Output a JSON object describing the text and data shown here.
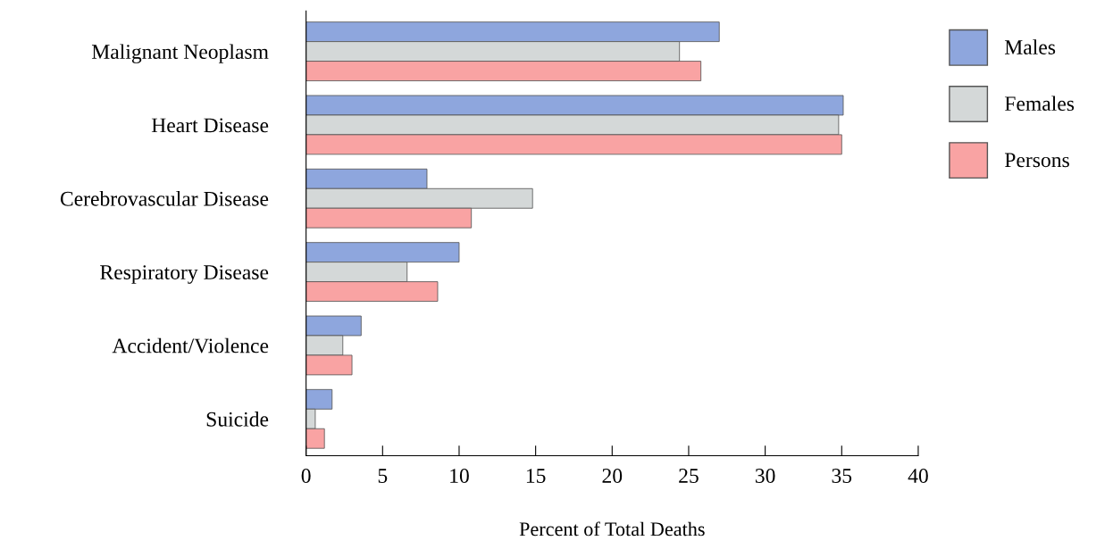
{
  "chart_data": {
    "type": "bar",
    "orientation": "horizontal",
    "xlabel": "Percent of Total Deaths",
    "categories": [
      "Malignant Neoplasm",
      "Heart Disease",
      "Cerebrovascular Disease",
      "Respiratory Disease",
      "Accident/Violence",
      "Suicide"
    ],
    "series": [
      {
        "name": "Males",
        "color": "#8ea6dd",
        "values": [
          27.0,
          35.1,
          7.9,
          10.0,
          3.6,
          1.7
        ]
      },
      {
        "name": "Females",
        "color": "#d4d8d8",
        "values": [
          24.4,
          34.8,
          14.8,
          6.6,
          2.4,
          0.6
        ]
      },
      {
        "name": "Persons",
        "color": "#f9a3a3",
        "values": [
          25.8,
          35.0,
          10.8,
          8.6,
          3.0,
          1.2
        ]
      }
    ],
    "xlim": [
      0,
      40
    ],
    "xticks": [
      0,
      5,
      10,
      15,
      20,
      25,
      30,
      35,
      40
    ],
    "grid": false,
    "legend": "top right"
  }
}
